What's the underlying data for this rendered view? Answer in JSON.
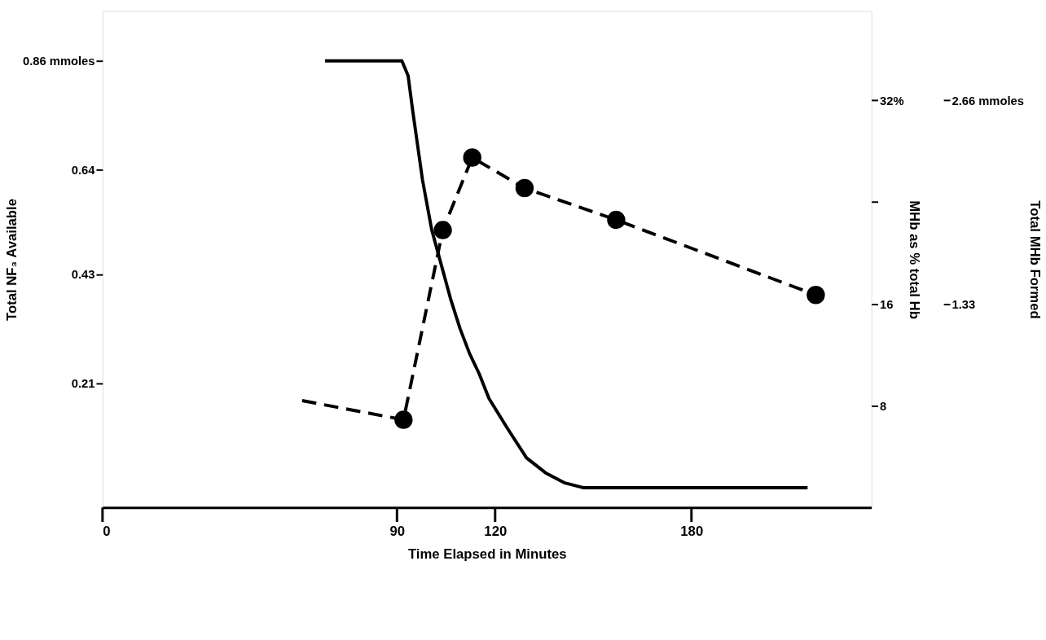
{
  "chart_data": {
    "type": "line",
    "xlabel": "Time Elapsed in Minutes",
    "ylabel": "Total NF₃ Available",
    "y2label": "MHb as % total Hb",
    "y3label": "Total MHb Formed",
    "xlim": [
      0,
      235
    ],
    "xticks": [
      0,
      90,
      120,
      180
    ],
    "ylim": [
      -0.04,
      0.96
    ],
    "yticks": [
      0.21,
      0.43,
      0.64,
      {
        "value": 0.86,
        "label": "0.86 mmoles"
      }
    ],
    "y2lim": [
      0,
      39
    ],
    "y2ticks": [
      8,
      16,
      {
        "value": 24,
        "label": null
      },
      {
        "value": 32,
        "label": "32%"
      }
    ],
    "y3lim": [
      0,
      3.242
    ],
    "y3ticks": [
      1.33,
      {
        "value": 2.66,
        "label": "2.66 mmoles"
      }
    ],
    "grid": false,
    "series": [
      {
        "axis": "y",
        "color": "#000000",
        "line_style": "solid",
        "marker": "none",
        "x": [
          68,
          91.5,
          93.4,
          94.8,
          97.8,
          100.6,
          103.5,
          106.4,
          109.3,
          112.2,
          115.1,
          118.1,
          123.7,
          129.6,
          135.4,
          141.1,
          146.9,
          215.5
        ],
        "values": [
          0.86,
          0.86,
          0.83,
          0.76,
          0.62,
          0.52,
          0.45,
          0.38,
          0.32,
          0.27,
          0.23,
          0.18,
          0.12,
          0.06,
          0.03,
          0.01,
          0,
          0
        ]
      },
      {
        "axis": "y2",
        "color": "#000000",
        "line_style": "dashed",
        "marker": "none",
        "x": [
          61,
          92,
          104,
          113,
          129,
          157,
          218
        ],
        "values": [
          8.4,
          6.9,
          21.8,
          27.5,
          25.1,
          22.6,
          16.7
        ]
      },
      {
        "type": "scatter",
        "axis": "y2",
        "color": "#000000",
        "marker": "circle",
        "x": [
          92,
          104,
          113,
          129,
          157,
          218
        ],
        "values": [
          6.9,
          21.8,
          27.5,
          25.1,
          22.6,
          16.7
        ]
      }
    ]
  }
}
